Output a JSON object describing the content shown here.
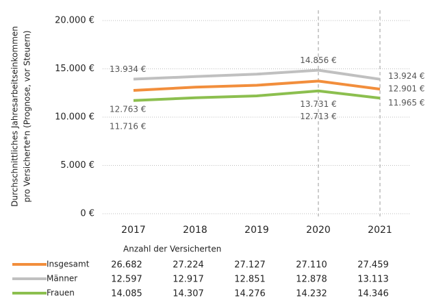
{
  "chart_data": {
    "type": "line",
    "y_label": [
      "Durchschnittliches Jahresarbeitseinkommen",
      "pro Versicherte*n (Prognose, vor Steuern)"
    ],
    "categories": [
      "2017",
      "2018",
      "2019",
      "2020",
      "2021"
    ],
    "series": [
      {
        "name": "Insgesamt",
        "color": "#f28e3c",
        "values": [
          12763,
          13100,
          13300,
          13731,
          12901
        ],
        "value_labels": [
          "12.763 €",
          null,
          null,
          "13.731 €",
          "12.901 €"
        ],
        "counts": [
          "26.682",
          "27.224",
          "27.127",
          "27.110",
          "27.459"
        ]
      },
      {
        "name": "Männer",
        "color": "#c0c0c0",
        "values": [
          13934,
          14200,
          14450,
          14856,
          13924
        ],
        "value_labels": [
          "13.934 €",
          null,
          null,
          "14.856 €",
          "13.924 €"
        ],
        "counts": [
          "12.597",
          "12.917",
          "12.851",
          "12.878",
          "13.113"
        ]
      },
      {
        "name": "Frauen",
        "color": "#8cbf4f",
        "values": [
          11716,
          12000,
          12200,
          12713,
          11965
        ],
        "value_labels": [
          "11.716 €",
          null,
          null,
          "12.713 €",
          "11.965 €"
        ],
        "counts": [
          "14.085",
          "14.307",
          "14.276",
          "14.232",
          "14.346"
        ]
      }
    ],
    "ylim": [
      0,
      20000
    ],
    "yticks": [
      {
        "value": 0,
        "label": "0 €"
      },
      {
        "value": 5000,
        "label": "5.000 €"
      },
      {
        "value": 10000,
        "label": "10.000 €"
      },
      {
        "value": 15000,
        "label": "15.000 €"
      },
      {
        "value": 20000,
        "label": "20.000 €"
      }
    ],
    "grid": true,
    "table_title": "Anzahl der Versicherten"
  }
}
